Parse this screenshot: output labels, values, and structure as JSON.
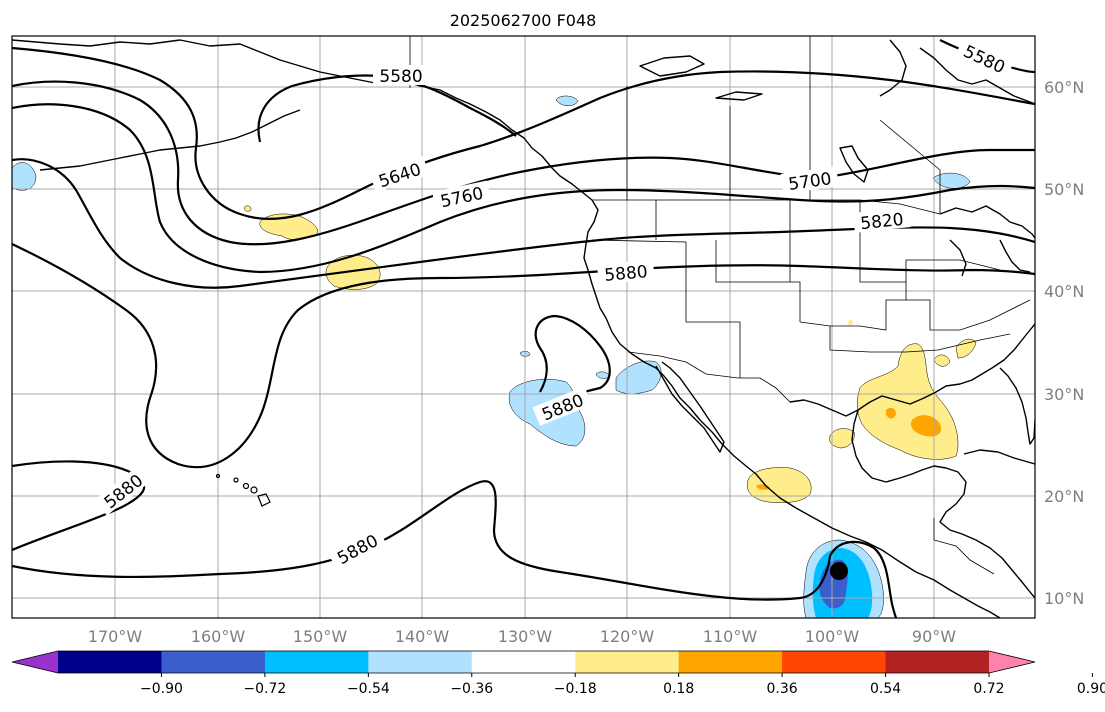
{
  "title": "2025062700 F048",
  "lat_labels": [
    "60°N",
    "50°N",
    "40°N",
    "30°N",
    "20°N",
    "10°N"
  ],
  "lon_labels": [
    "170°W",
    "160°W",
    "150°W",
    "140°W",
    "130°W",
    "120°W",
    "110°W",
    "100°W",
    "90°W"
  ],
  "contour_labels": [
    "5580",
    "5580",
    "5640",
    "5700",
    "5760",
    "5820",
    "5880",
    "5880",
    "5880",
    "5880"
  ],
  "colorbar": {
    "ticks": [
      "−0.90",
      "−0.72",
      "−0.54",
      "−0.36",
      "−0.18",
      "0.18",
      "0.36",
      "0.54",
      "0.72",
      "0.90"
    ],
    "colors": [
      "#9a32cd",
      "#00008b",
      "#3a5fcd",
      "#00bfff",
      "#b0e2ff",
      "#ffffff",
      "#ffec8b",
      "#ffa500",
      "#ff4500",
      "#b22222",
      "#ff82ab"
    ]
  },
  "colors": {
    "positive_light": "#ffec8b",
    "positive_mid": "#ffa500",
    "negative_light": "#b0e2ff",
    "negative_mid": "#00bfff",
    "negative_strong": "#3a5fcd",
    "contour": "#000000",
    "grid": "#a8a8a8"
  },
  "marker": {
    "label": "storm-center",
    "lat": 12.5,
    "lon": -99.8
  }
}
